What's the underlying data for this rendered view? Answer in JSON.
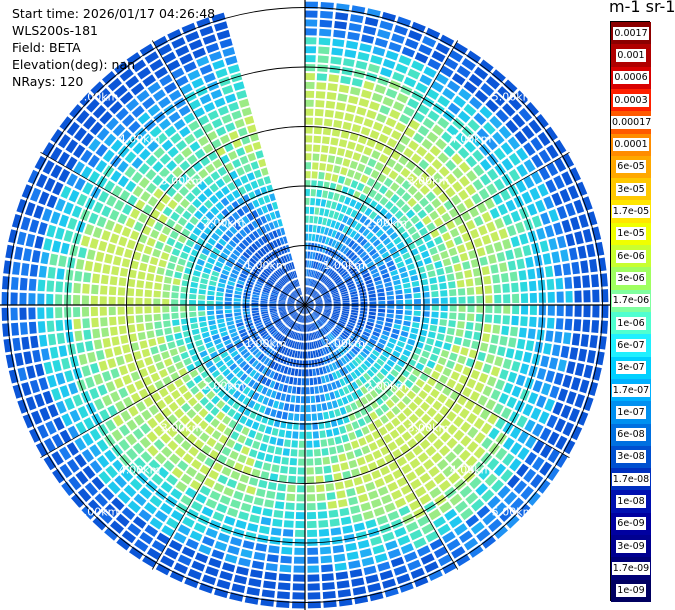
{
  "info": {
    "start_time": "Start time: 2026/01/17 04:26:48",
    "instrument": "WLS200s-181",
    "field": "Field: BETA",
    "elevation": "Elevation(deg): nan",
    "nrays": "NRays: 120"
  },
  "colorbar": {
    "title": "m-1 sr-1",
    "labels": [
      "0.0017",
      "0.001",
      "0.0006",
      "0.0003",
      "0.00017",
      "0.0001",
      "6e-05",
      "3e-05",
      "1.7e-05",
      "1e-05",
      "6e-06",
      "3e-06",
      "1.7e-06",
      "1e-06",
      "6e-07",
      "3e-07",
      "1.7e-07",
      "1e-07",
      "6e-08",
      "3e-08",
      "1.7e-08",
      "1e-08",
      "6e-09",
      "3e-09",
      "1.7e-09",
      "1e-09"
    ],
    "colors": [
      "#8b0000",
      "#b00000",
      "#d80000",
      "#ff2000",
      "#ff5a00",
      "#ff8c00",
      "#ffa800",
      "#ffc800",
      "#ffe600",
      "#f0ff00",
      "#c8ff30",
      "#a0ff60",
      "#80ffa0",
      "#50ffd0",
      "#20f0ff",
      "#00d0ff",
      "#00b0ff",
      "#0090f0",
      "#0070e0",
      "#0050d0",
      "#0030c0",
      "#0010b0",
      "#0000a0",
      "#000090",
      "#000078",
      "#000060"
    ]
  },
  "chart_data": {
    "type": "polar-ppi",
    "field": "BETA",
    "units": "m-1 sr-1",
    "n_rays": 120,
    "ring_labels": [
      "1.00km",
      "2.00km",
      "3.00km",
      "4.00km",
      "5.00km"
    ],
    "ring_ranges_km": [
      1,
      2,
      3,
      4,
      5
    ],
    "max_range_km": 5.1,
    "missing_sector_deg": [
      345,
      360
    ],
    "spoke_angles_deg": [
      0,
      30,
      60,
      90,
      120,
      150,
      180,
      210,
      240,
      270,
      300,
      330
    ],
    "scale": "log",
    "value_range": [
      1e-09,
      0.0017
    ]
  }
}
